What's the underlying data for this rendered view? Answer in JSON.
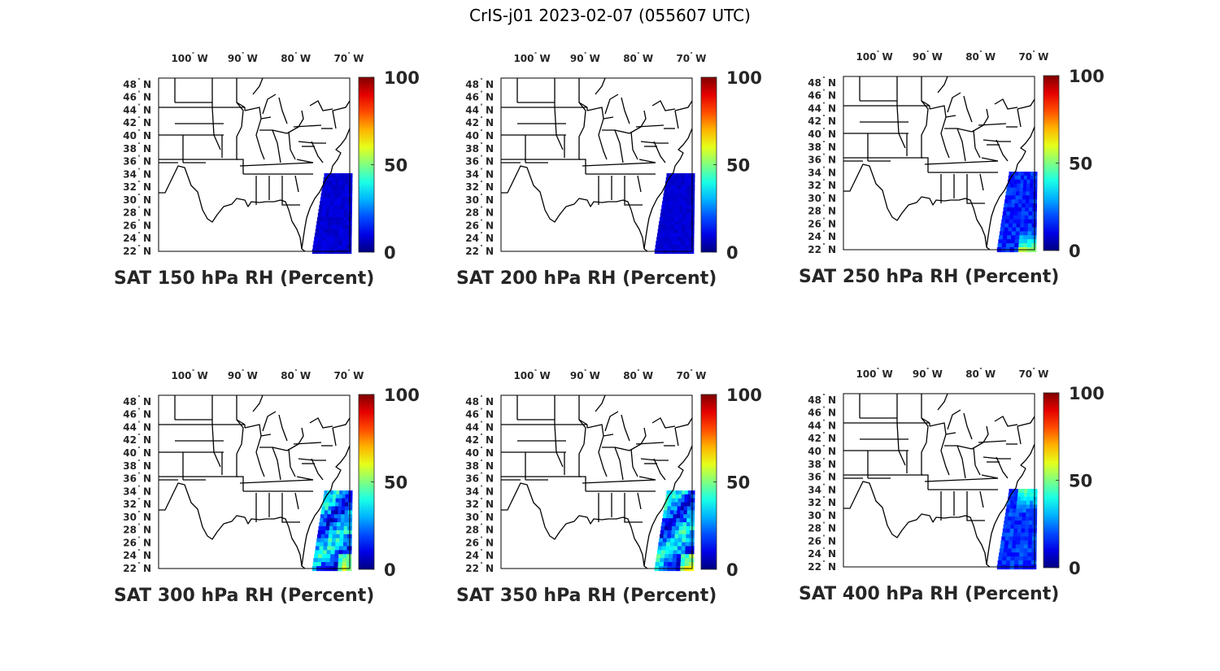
{
  "figure": {
    "title": "CrIS-j01 2023-02-07 (055607 UTC)"
  },
  "panels": [
    {
      "title": "SAT 150 hPa RH (Percent)",
      "level": "150 hPa",
      "swath_pattern": "uniform-low"
    },
    {
      "title": "SAT 200 hPa RH (Percent)",
      "level": "200 hPa",
      "swath_pattern": "uniform-low"
    },
    {
      "title": "SAT 250 hPa RH (Percent)",
      "level": "250 hPa",
      "swath_pattern": "low-with-moist-south"
    },
    {
      "title": "SAT 300 hPa RH (Percent)",
      "level": "300 hPa",
      "swath_pattern": "moderate-mixed"
    },
    {
      "title": "SAT 350 hPa RH (Percent)",
      "level": "350 hPa",
      "swath_pattern": "moderate-mixed"
    },
    {
      "title": "SAT 400 hPa RH (Percent)",
      "level": "400 hPa",
      "swath_pattern": "low-with-moist-north"
    }
  ],
  "map": {
    "lon_ticks": [
      {
        "value": -100,
        "deg": "100",
        "hemi": "W"
      },
      {
        "value": -90,
        "deg": "90",
        "hemi": "W"
      },
      {
        "value": -80,
        "deg": "80",
        "hemi": "W"
      },
      {
        "value": -70,
        "deg": "70",
        "hemi": "W"
      }
    ],
    "lat_ticks": [
      {
        "value": 22,
        "deg": "22",
        "hemi": "N"
      },
      {
        "value": 24,
        "deg": "24",
        "hemi": "N"
      },
      {
        "value": 26,
        "deg": "26",
        "hemi": "N"
      },
      {
        "value": 28,
        "deg": "28",
        "hemi": "N"
      },
      {
        "value": 30,
        "deg": "30",
        "hemi": "N"
      },
      {
        "value": 32,
        "deg": "32",
        "hemi": "N"
      },
      {
        "value": 34,
        "deg": "34",
        "hemi": "N"
      },
      {
        "value": 36,
        "deg": "36",
        "hemi": "N"
      },
      {
        "value": 38,
        "deg": "38",
        "hemi": "N"
      },
      {
        "value": 40,
        "deg": "40",
        "hemi": "N"
      },
      {
        "value": 42,
        "deg": "42",
        "hemi": "N"
      },
      {
        "value": 44,
        "deg": "44",
        "hemi": "N"
      },
      {
        "value": 46,
        "deg": "46",
        "hemi": "N"
      },
      {
        "value": 48,
        "deg": "48",
        "hemi": "N"
      }
    ],
    "region": "Eastern United States"
  },
  "colorbar": {
    "colormap": "jet",
    "min": 0,
    "max": 100,
    "ticks": [
      "0",
      "50",
      "100"
    ]
  },
  "colors": {
    "background": "#ffffff",
    "borders": "#000000",
    "text": "#262626"
  }
}
